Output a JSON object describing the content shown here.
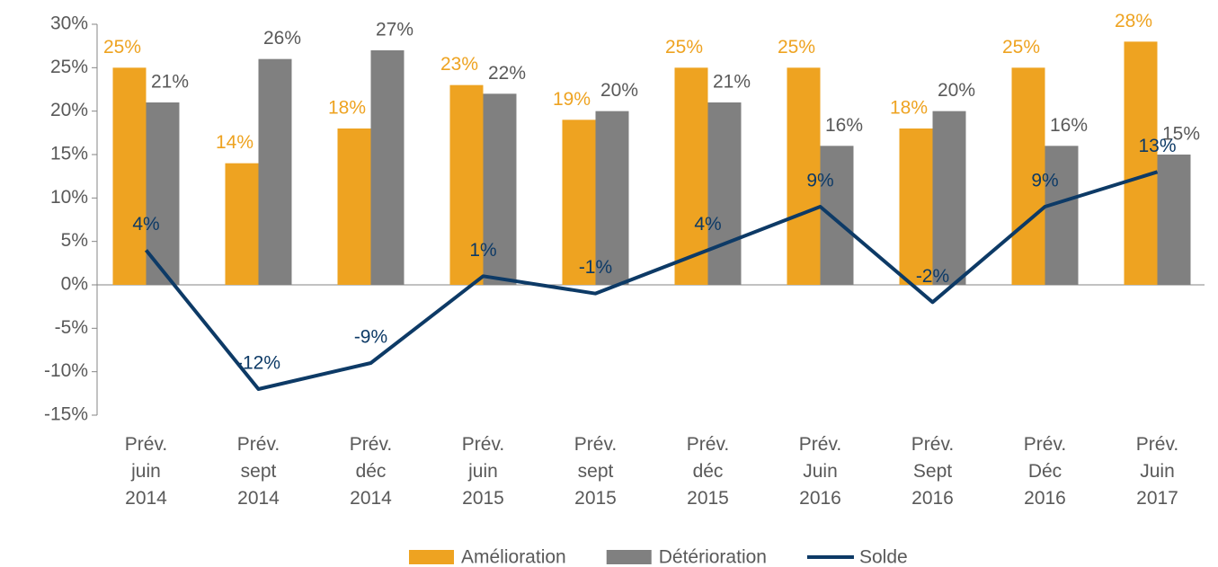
{
  "chart_data": {
    "type": "bar_line",
    "categories": [
      "Prév.\njuin\n2014",
      "Prév.\nsept\n2014",
      "Prév.\ndéc\n2014",
      "Prév.\njuin\n2015",
      "Prév.\nsept\n2015",
      "Prév.\ndéc\n2015",
      "Prév.\nJuin\n2016",
      "Prév.\nSept\n2016",
      "Prév.\nDéc\n2016",
      "Prév.\nJuin\n2017"
    ],
    "series": [
      {
        "name": "Amélioration",
        "color": "#eea321",
        "kind": "bar",
        "values": [
          25,
          14,
          18,
          23,
          19,
          25,
          25,
          18,
          25,
          28
        ],
        "value_labels": [
          "25%",
          "14%",
          "18%",
          "23%",
          "19%",
          "25%",
          "25%",
          "18%",
          "25%",
          "28%"
        ]
      },
      {
        "name": "Détérioration",
        "color": "#808080",
        "kind": "bar",
        "values": [
          21,
          26,
          27,
          22,
          20,
          21,
          16,
          20,
          16,
          15
        ],
        "value_labels": [
          "21%",
          "26%",
          "27%",
          "22%",
          "20%",
          "21%",
          "16%",
          "20%",
          "16%",
          "15%"
        ]
      },
      {
        "name": "Solde",
        "color": "#0d3a66",
        "kind": "line",
        "values": [
          4,
          -12,
          -9,
          1,
          -1,
          4,
          9,
          -2,
          9,
          13
        ],
        "value_labels": [
          "4%",
          "-12%",
          "-9%",
          "1%",
          "-1%",
          "4%",
          "9%",
          "-2%",
          "9%",
          "13%"
        ]
      }
    ],
    "ylim": [
      -15,
      30
    ],
    "yticks": [
      {
        "value": -15,
        "label": "-15%"
      },
      {
        "value": -10,
        "label": "-10%"
      },
      {
        "value": -5,
        "label": "-5%"
      },
      {
        "value": 0,
        "label": "0%"
      },
      {
        "value": 5,
        "label": "5%"
      },
      {
        "value": 10,
        "label": "10%"
      },
      {
        "value": 15,
        "label": "15%"
      },
      {
        "value": 20,
        "label": "20%"
      },
      {
        "value": 25,
        "label": "25%"
      },
      {
        "value": 30,
        "label": "30%"
      }
    ],
    "legend": "bottom"
  }
}
